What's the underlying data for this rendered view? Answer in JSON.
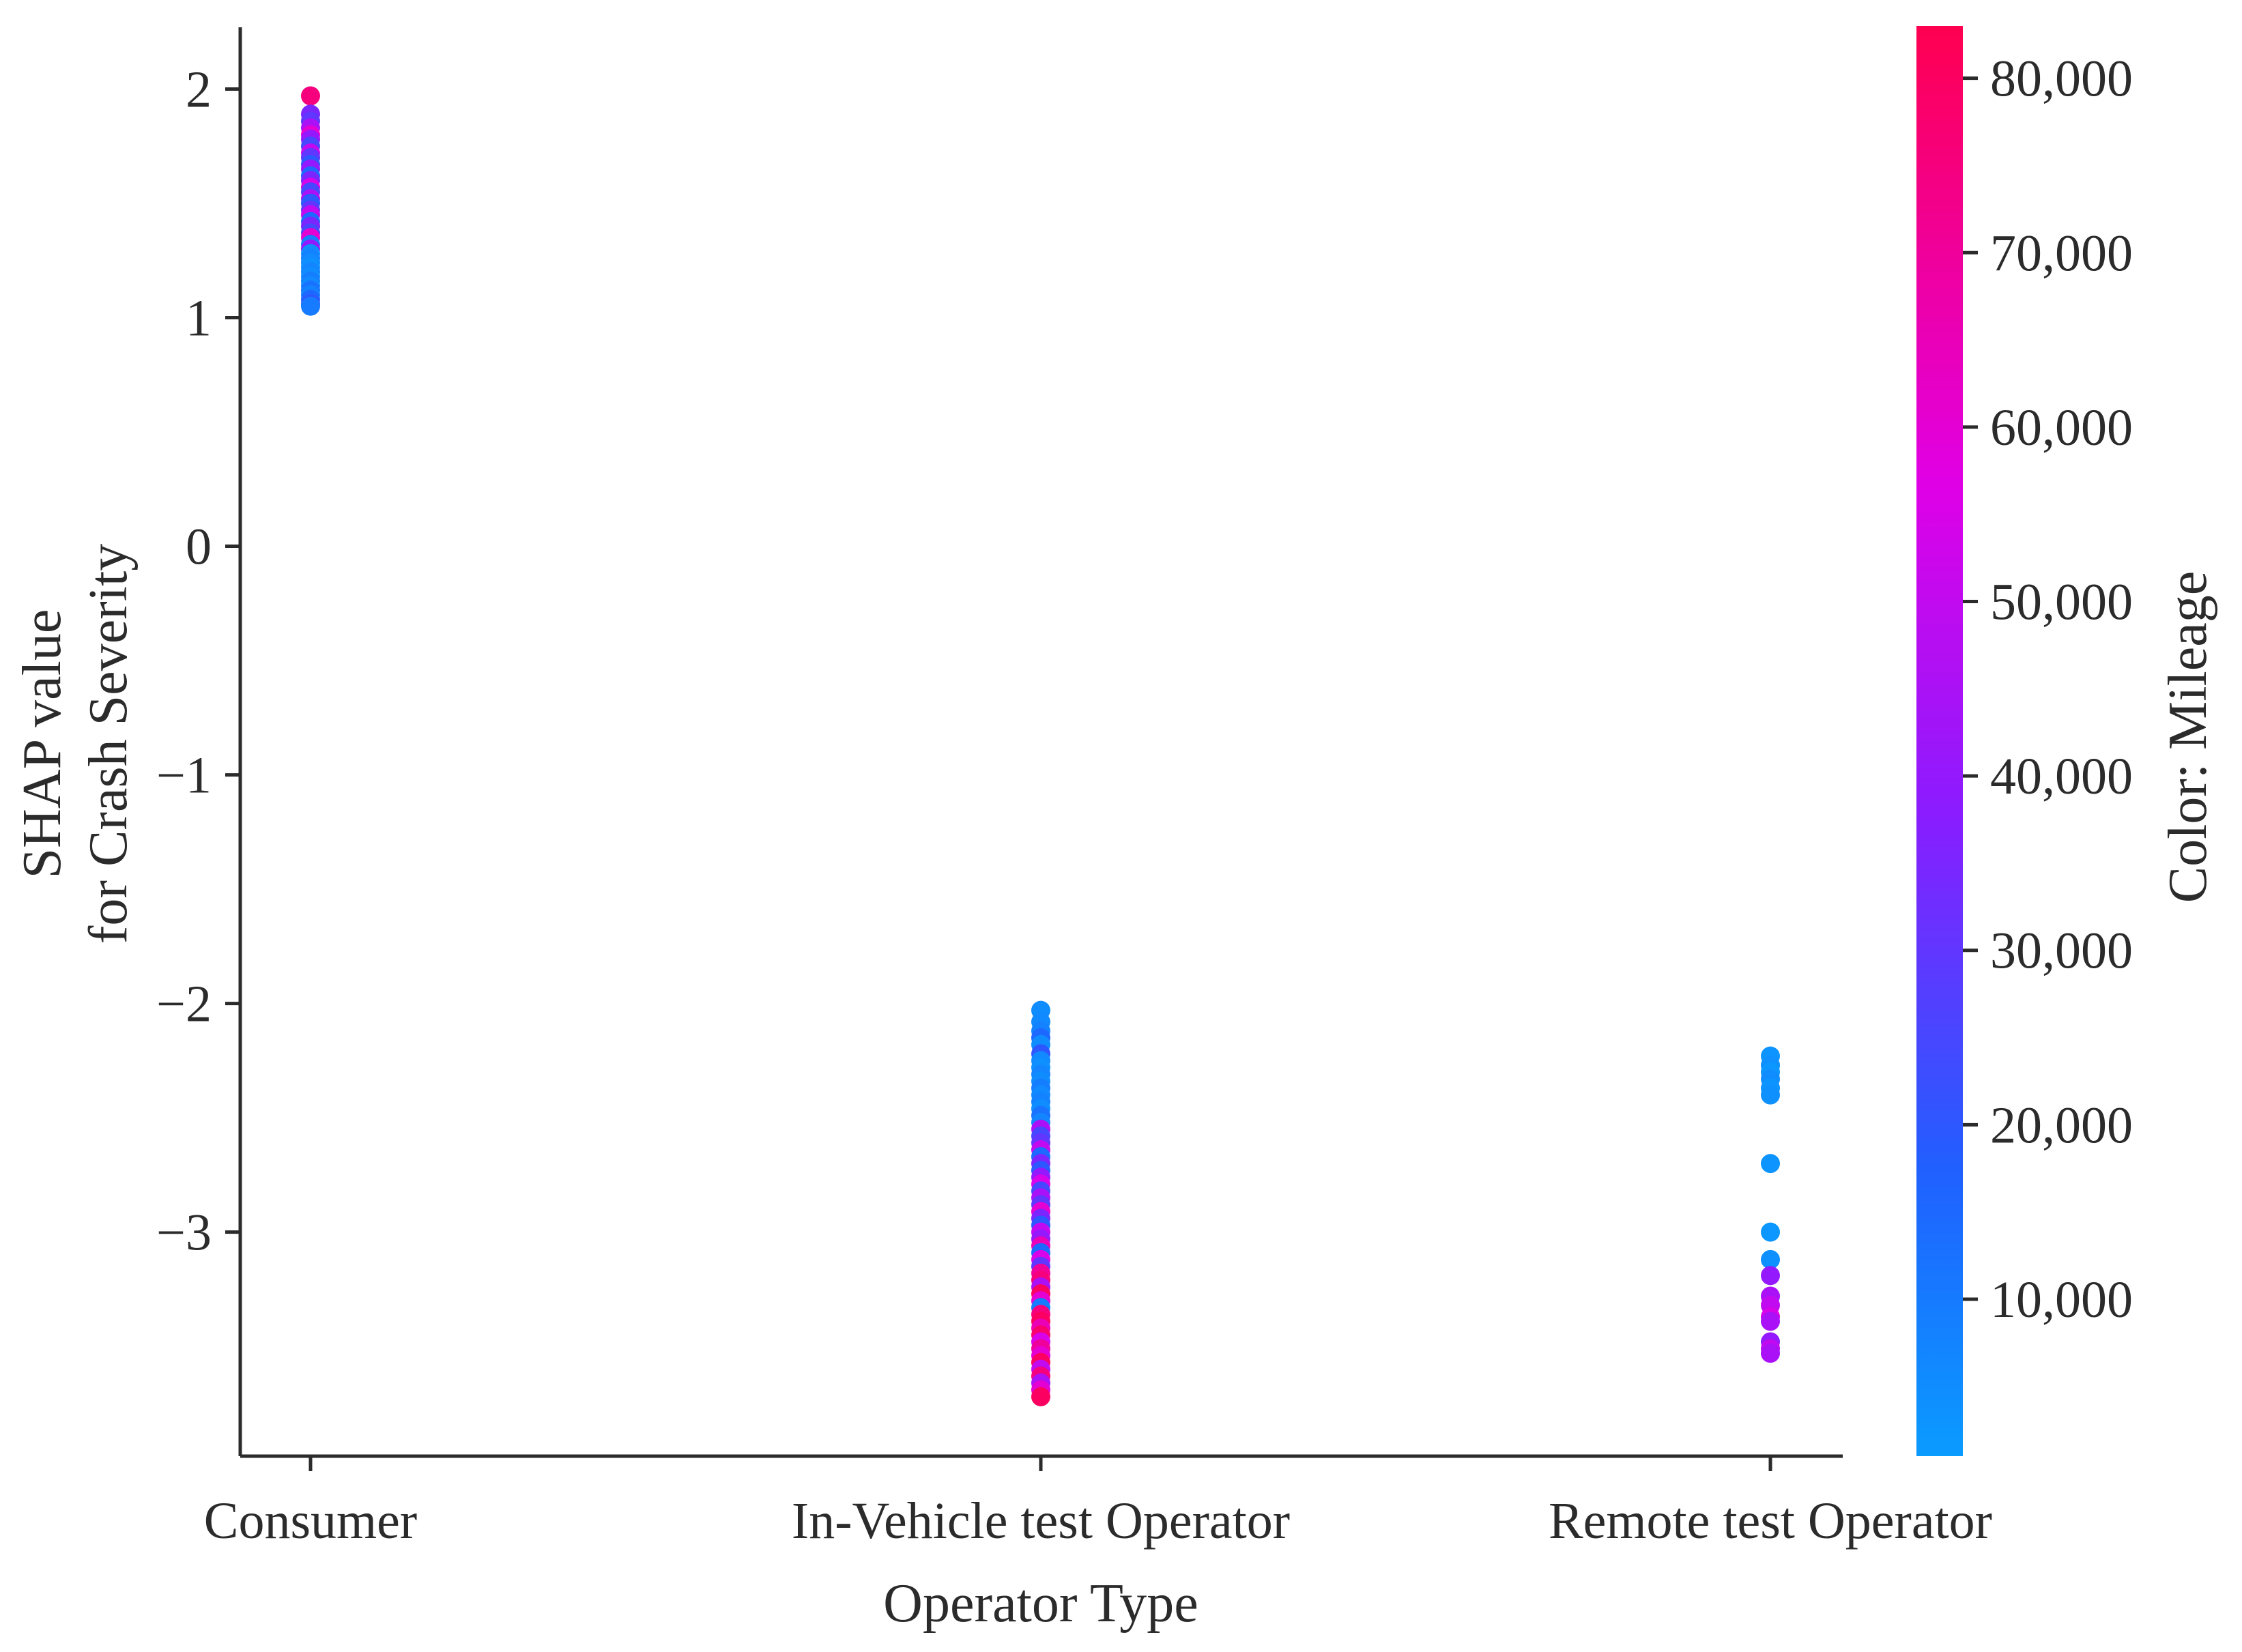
{
  "chart_data": {
    "type": "scatter",
    "xlabel": "Operator Type",
    "ylabel_lines": [
      "SHAP value",
      "for Crash Severity"
    ],
    "categories": [
      "Consumer",
      "In-Vehicle test Operator",
      "Remote test Operator"
    ],
    "ylim": [
      -3.98,
      2.27
    ],
    "yticks": [
      2,
      1,
      0,
      -1,
      -2,
      -3
    ],
    "ytick_labels": [
      "2",
      "1",
      "0",
      "−1",
      "−2",
      "−3"
    ],
    "grid": false,
    "colorbar": {
      "label": "Color: Mileage",
      "min": 1000,
      "max": 83000,
      "ticks": [
        80000,
        70000,
        60000,
        50000,
        40000,
        30000,
        20000,
        10000
      ],
      "tick_labels": [
        "80,000",
        "70,000",
        "60,000",
        "50,000",
        "40,000",
        "30,000",
        "20,000",
        "10,000"
      ],
      "colors": [
        "#0a9bff",
        "#2060ff",
        "#8a1cff",
        "#e000e6",
        "#ff0050"
      ]
    },
    "series": [
      {
        "category": "Consumer",
        "points": [
          [
            1.97,
            75000
          ],
          [
            1.89,
            35000
          ],
          [
            1.86,
            30000
          ],
          [
            1.83,
            45000
          ],
          [
            1.8,
            60000
          ],
          [
            1.78,
            40000
          ],
          [
            1.75,
            25000
          ],
          [
            1.72,
            50000
          ],
          [
            1.7,
            30000
          ],
          [
            1.67,
            20000
          ],
          [
            1.65,
            40000
          ],
          [
            1.62,
            15000
          ],
          [
            1.6,
            35000
          ],
          [
            1.57,
            55000
          ],
          [
            1.55,
            25000
          ],
          [
            1.52,
            45000
          ],
          [
            1.5,
            20000
          ],
          [
            1.47,
            30000
          ],
          [
            1.45,
            50000
          ],
          [
            1.42,
            15000
          ],
          [
            1.4,
            35000
          ],
          [
            1.37,
            25000
          ],
          [
            1.35,
            60000
          ],
          [
            1.32,
            10000
          ],
          [
            1.3,
            40000
          ],
          [
            1.28,
            5000
          ],
          [
            1.26,
            8000
          ],
          [
            1.24,
            6000
          ],
          [
            1.22,
            4000
          ],
          [
            1.2,
            7000
          ],
          [
            1.18,
            5000
          ],
          [
            1.16,
            9000
          ],
          [
            1.14,
            6000
          ],
          [
            1.12,
            12000
          ],
          [
            1.1,
            8000
          ],
          [
            1.08,
            15000
          ],
          [
            1.06,
            20000
          ],
          [
            1.05,
            10000
          ]
        ]
      },
      {
        "category": "In-Vehicle test Operator",
        "points": [
          [
            -2.03,
            5000
          ],
          [
            -2.08,
            6000
          ],
          [
            -2.12,
            8000
          ],
          [
            -2.15,
            15000
          ],
          [
            -2.18,
            5000
          ],
          [
            -2.22,
            20000
          ],
          [
            -2.25,
            6000
          ],
          [
            -2.28,
            4000
          ],
          [
            -2.31,
            7000
          ],
          [
            -2.34,
            5000
          ],
          [
            -2.37,
            9000
          ],
          [
            -2.4,
            6000
          ],
          [
            -2.43,
            8000
          ],
          [
            -2.46,
            5000
          ],
          [
            -2.49,
            12000
          ],
          [
            -2.52,
            7000
          ],
          [
            -2.55,
            45000
          ],
          [
            -2.58,
            25000
          ],
          [
            -2.61,
            30000
          ],
          [
            -2.64,
            50000
          ],
          [
            -2.67,
            15000
          ],
          [
            -2.7,
            35000
          ],
          [
            -2.73,
            20000
          ],
          [
            -2.76,
            40000
          ],
          [
            -2.79,
            55000
          ],
          [
            -2.82,
            25000
          ],
          [
            -2.85,
            45000
          ],
          [
            -2.88,
            30000
          ],
          [
            -2.91,
            60000
          ],
          [
            -2.94,
            35000
          ],
          [
            -2.97,
            20000
          ],
          [
            -3.0,
            50000
          ],
          [
            -3.03,
            40000
          ],
          [
            -3.06,
            65000
          ],
          [
            -3.09,
            15000
          ],
          [
            -3.12,
            55000
          ],
          [
            -3.15,
            30000
          ],
          [
            -3.18,
            70000
          ],
          [
            -3.21,
            75000
          ],
          [
            -3.24,
            45000
          ],
          [
            -3.27,
            80000
          ],
          [
            -3.3,
            60000
          ],
          [
            -3.33,
            10000
          ],
          [
            -3.36,
            75000
          ],
          [
            -3.39,
            80000
          ],
          [
            -3.42,
            65000
          ],
          [
            -3.45,
            78000
          ],
          [
            -3.48,
            55000
          ],
          [
            -3.51,
            70000
          ],
          [
            -3.54,
            60000
          ],
          [
            -3.57,
            80000
          ],
          [
            -3.6,
            50000
          ],
          [
            -3.63,
            75000
          ],
          [
            -3.66,
            45000
          ],
          [
            -3.69,
            60000
          ],
          [
            -3.72,
            80000
          ]
        ]
      },
      {
        "category": "Remote test Operator",
        "points": [
          [
            -2.23,
            3000
          ],
          [
            -2.27,
            4000
          ],
          [
            -2.3,
            2000
          ],
          [
            -2.33,
            5000
          ],
          [
            -2.37,
            3000
          ],
          [
            -2.4,
            4000
          ],
          [
            -2.7,
            3000
          ],
          [
            -3.0,
            2000
          ],
          [
            -3.12,
            4000
          ],
          [
            -3.19,
            40000
          ],
          [
            -3.28,
            45000
          ],
          [
            -3.32,
            50000
          ],
          [
            -3.37,
            55000
          ],
          [
            -3.39,
            45000
          ],
          [
            -3.48,
            40000
          ],
          [
            -3.51,
            50000
          ],
          [
            -3.53,
            45000
          ]
        ]
      }
    ]
  }
}
